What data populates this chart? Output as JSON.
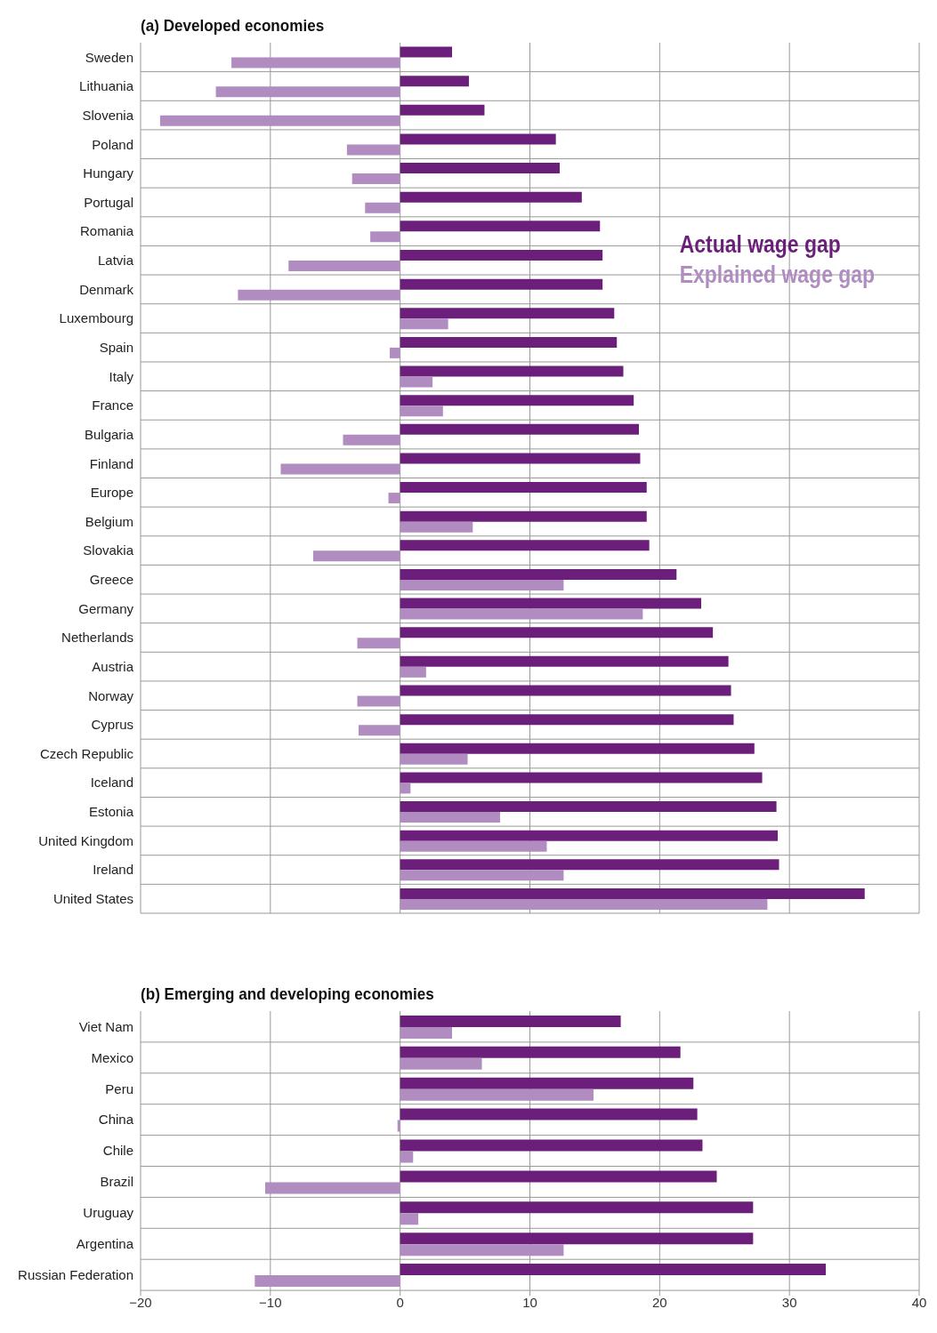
{
  "chart_data": [
    {
      "type": "bar",
      "orientation": "horizontal",
      "title": "(a) Developed economies",
      "categories": [
        "Sweden",
        "Lithuania",
        "Slovenia",
        "Poland",
        "Hungary",
        "Portugal",
        "Romania",
        "Latvia",
        "Denmark",
        "Luxembourg",
        "Spain",
        "Italy",
        "France",
        "Bulgaria",
        "Finland",
        "Europe",
        "Belgium",
        "Slovakia",
        "Greece",
        "Germany",
        "Netherlands",
        "Austria",
        "Norway",
        "Cyprus",
        "Czech Republic",
        "Iceland",
        "Estonia",
        "United Kingdom",
        "Ireland",
        "United States"
      ],
      "series": [
        {
          "name": "Actual wage gap",
          "color": "#6b1f7a",
          "values": [
            4.0,
            5.3,
            6.5,
            12.0,
            12.3,
            14.0,
            15.4,
            15.6,
            15.6,
            16.5,
            16.7,
            17.2,
            18.0,
            18.4,
            18.5,
            19.0,
            19.0,
            19.2,
            21.3,
            23.2,
            24.1,
            25.3,
            25.5,
            25.7,
            27.3,
            27.9,
            29.0,
            29.1,
            29.2,
            35.8
          ]
        },
        {
          "name": "Explained wage gap",
          "color": "#b08cc0",
          "values": [
            -13.0,
            -14.2,
            -18.5,
            -4.1,
            -3.7,
            -2.7,
            -2.3,
            -8.6,
            -12.5,
            3.7,
            -0.8,
            2.5,
            3.3,
            -4.4,
            -9.2,
            -0.9,
            5.6,
            -6.7,
            12.6,
            18.7,
            -3.3,
            2.0,
            -3.3,
            -3.2,
            5.2,
            0.8,
            7.7,
            11.3,
            12.6,
            28.3
          ]
        }
      ],
      "xlim": [
        -20,
        40
      ],
      "xticks": [
        -20,
        -10,
        0,
        10,
        20,
        30,
        40
      ],
      "grid": true,
      "tick_labels": "y",
      "legend": "top right"
    },
    {
      "type": "bar",
      "orientation": "horizontal",
      "title": "(b) Emerging and developing economies",
      "categories": [
        "Viet Nam",
        "Mexico",
        "Peru",
        "China",
        "Chile",
        "Brazil",
        "Uruguay",
        "Argentina",
        "Russian Federation"
      ],
      "series": [
        {
          "color": "#6b1f7a",
          "values": [
            17.0,
            21.6,
            22.6,
            22.9,
            23.3,
            24.4,
            27.2,
            27.2,
            32.8
          ]
        },
        {
          "color": "#b08cc0",
          "values": [
            4.0,
            6.3,
            14.9,
            -0.2,
            1.0,
            -10.4,
            1.4,
            12.6,
            -11.2
          ]
        }
      ],
      "xlim": [
        -20,
        40
      ],
      "xticks": [
        {
          "value": -20,
          "label": "−20"
        },
        {
          "value": -10,
          "label": "−10"
        },
        0,
        10,
        20,
        30,
        40
      ],
      "grid": true
    }
  ]
}
